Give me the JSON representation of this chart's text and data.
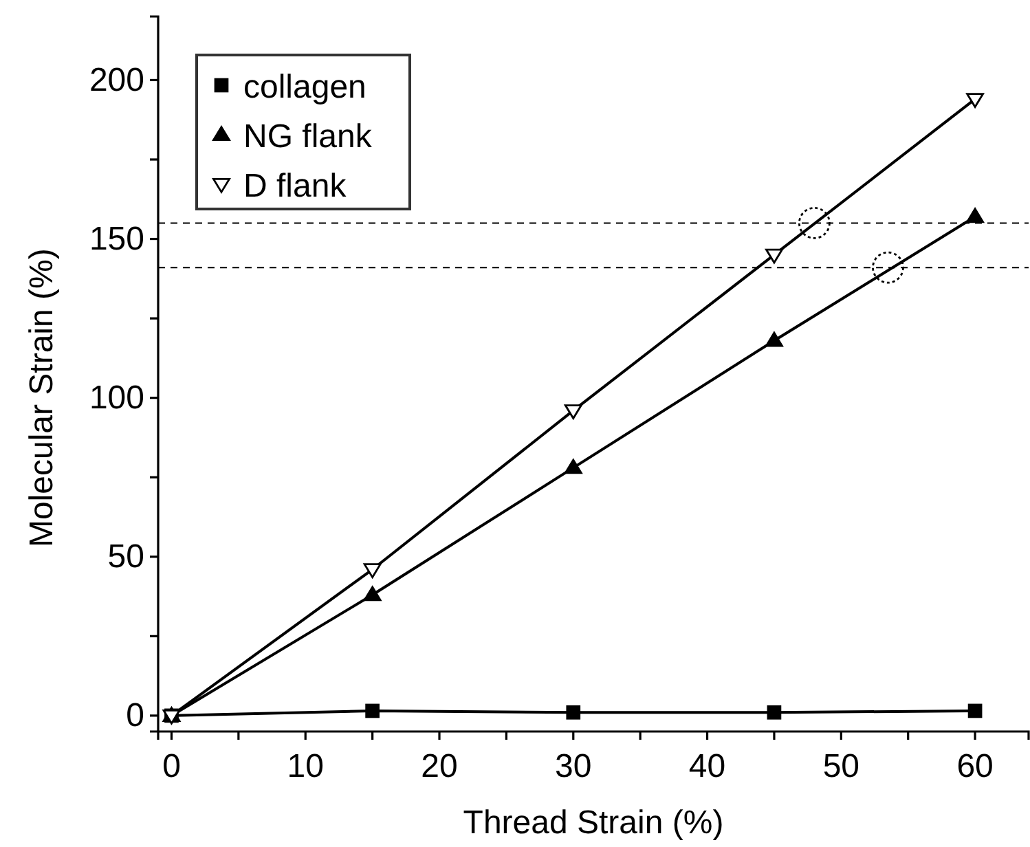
{
  "chart_data": {
    "type": "line",
    "xlabel": "Thread Strain (%)",
    "ylabel": "Molecular Strain (%)",
    "x": [
      0,
      15,
      30,
      45,
      60
    ],
    "series": [
      {
        "name": "collagen",
        "color": "#000000",
        "marker": "square",
        "values": [
          0,
          1.5,
          1,
          1,
          1.5
        ]
      },
      {
        "name": "NG flank",
        "color": "#000000",
        "marker": "triangle",
        "values": [
          0,
          38,
          78,
          118,
          157
        ]
      },
      {
        "name": "D flank",
        "color": "#ffffff",
        "marker": "triangle",
        "values": [
          0,
          46,
          96,
          145,
          194
        ]
      },
      {
        "type": "scatter",
        "color": "#000000",
        "marker": "circle",
        "line_style": "dotted",
        "x": [
          48,
          53.5
        ],
        "values": [
          155,
          141
        ]
      }
    ],
    "xlim": [
      -1,
      64
    ],
    "xticks": [
      0,
      {
        "value": 5,
        "label": null
      },
      10,
      {
        "value": 15,
        "label": null
      },
      20,
      {
        "value": 25,
        "label": null
      },
      30,
      {
        "value": 35,
        "label": null
      },
      40,
      {
        "value": 45,
        "label": null
      },
      50,
      {
        "value": 55,
        "label": null
      },
      60
    ],
    "ylim": [
      -5,
      220
    ],
    "yticks": [
      0,
      {
        "value": 25,
        "label": null
      },
      50,
      {
        "value": 75,
        "label": null
      },
      100,
      {
        "value": 125,
        "label": null
      },
      150,
      {
        "value": 175,
        "label": null
      },
      200
    ],
    "ref_lines": [
      {
        "axis": "y",
        "value": 155,
        "line_style": "dashed"
      },
      {
        "axis": "y",
        "value": 141,
        "line_style": "dashed"
      }
    ],
    "legend": "top left",
    "line_style": "solid",
    "grid": false
  }
}
